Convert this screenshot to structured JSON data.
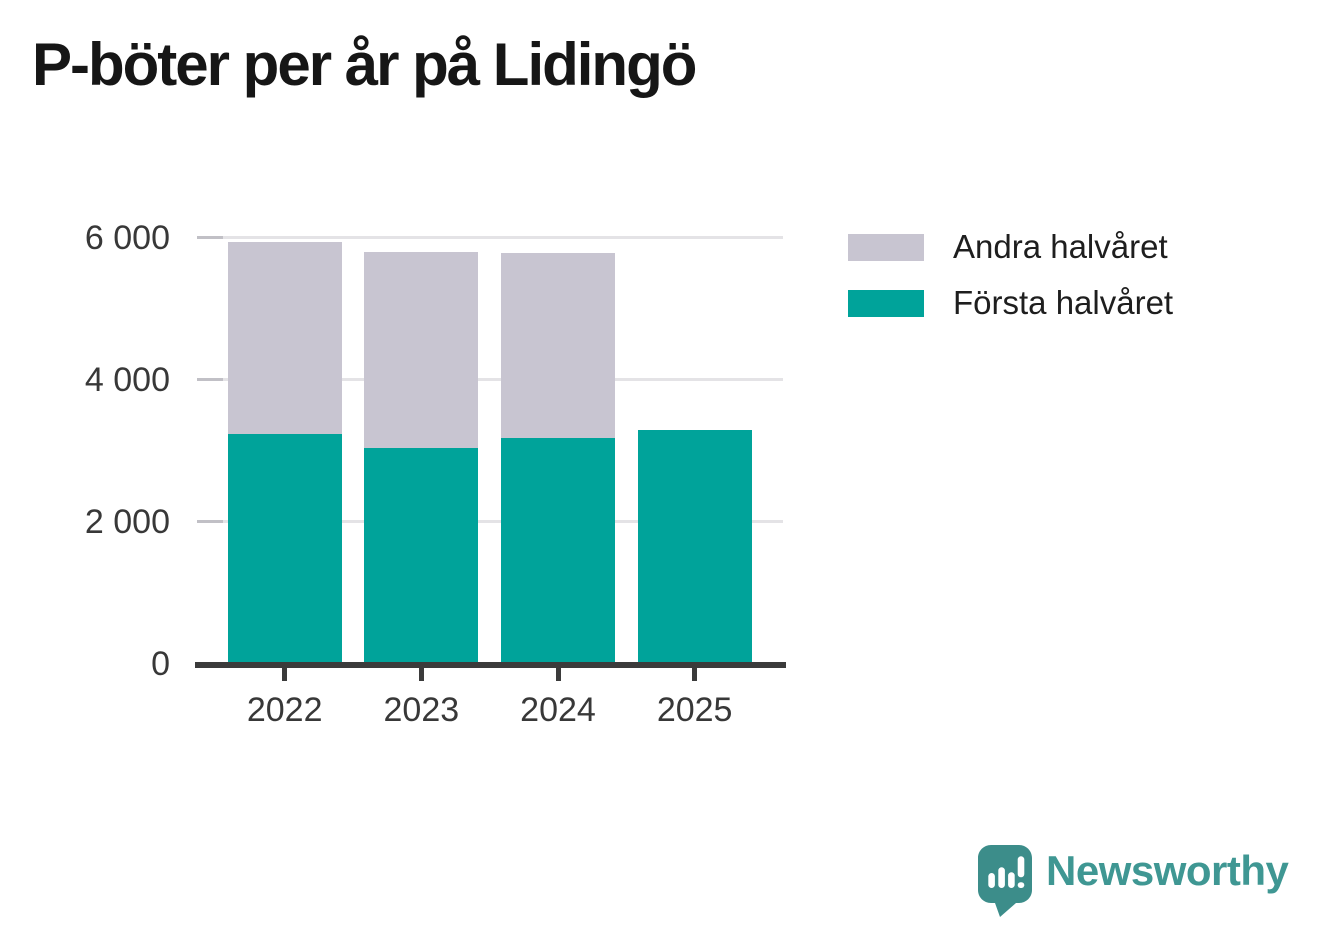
{
  "title": "P-böter per år på Lidingö",
  "chart_data": {
    "type": "bar",
    "stacked": true,
    "title": "P-böter per år på Lidingö",
    "categories": [
      "2022",
      "2023",
      "2024",
      "2025"
    ],
    "series": [
      {
        "name": "Första halvåret",
        "color": "#00a39a",
        "values": [
          3230,
          3040,
          3170,
          3290
        ]
      },
      {
        "name": "Andra halvåret",
        "color": "#c8c5d1",
        "values": [
          2710,
          2750,
          2610,
          0
        ]
      }
    ],
    "totals": [
      5940,
      5790,
      5780,
      3290
    ],
    "xlabel": "",
    "ylabel": "",
    "ylim": [
      0,
      6000
    ],
    "yticks": [
      {
        "value": 0,
        "label": "0"
      },
      {
        "value": 2000,
        "label": "2 000"
      },
      {
        "value": 4000,
        "label": "4 000"
      },
      {
        "value": 6000,
        "label": "6 000"
      }
    ],
    "grid": true,
    "legend_position": "top-right",
    "legend": [
      {
        "label": "Andra halvåret",
        "color": "#c8c5d1"
      },
      {
        "label": "Första halvåret",
        "color": "#00a39a"
      }
    ]
  },
  "branding": {
    "logo_text": "Newsworthy",
    "logo_icon": "newsworthy-speech-bubble-chart-icon",
    "logo_color": "#3f9793",
    "icon_color": "#3c8d8a"
  }
}
